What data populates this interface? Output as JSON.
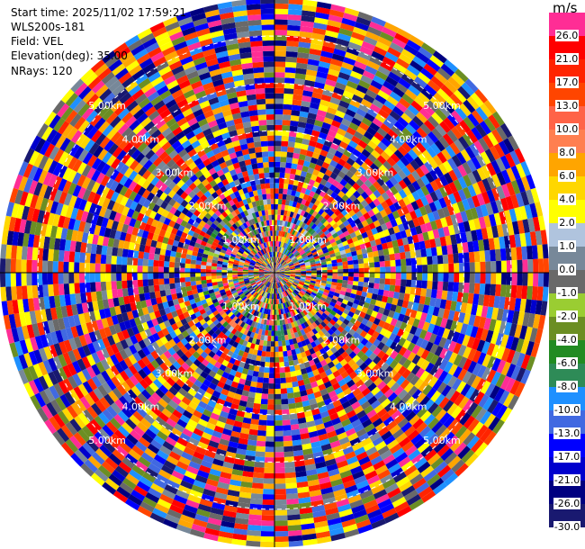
{
  "info": {
    "start_time": "Start time: 2025/11/02 17:59:21",
    "station": "WLS200s-181",
    "field": "Field: VEL",
    "elevation": "Elevation(deg): 35.00",
    "nrays": "NRays: 120"
  },
  "colorbar": {
    "unit": "m/s",
    "bins": [
      {
        "label": "26.0",
        "color": "#ff2d95"
      },
      {
        "label": "21.0",
        "color": "#ff0000"
      },
      {
        "label": "17.0",
        "color": "#ff2400"
      },
      {
        "label": "13.0",
        "color": "#ff4500"
      },
      {
        "label": "10.0",
        "color": "#ff6347"
      },
      {
        "label": "8.0",
        "color": "#ff7f50"
      },
      {
        "label": "6.0",
        "color": "#ffa500"
      },
      {
        "label": "4.0",
        "color": "#ffd700"
      },
      {
        "label": "2.0",
        "color": "#ffff00"
      },
      {
        "label": "1.0",
        "color": "#b0c4de"
      },
      {
        "label": "0.0",
        "color": "#778899"
      },
      {
        "label": "-1.0",
        "color": "#696969"
      },
      {
        "label": "-2.0",
        "color": "#9acd32"
      },
      {
        "label": "-4.0",
        "color": "#6b8e23"
      },
      {
        "label": "-6.0",
        "color": "#228b22"
      },
      {
        "label": "-8.0",
        "color": "#2e8b57"
      },
      {
        "label": "-10.0",
        "color": "#1e90ff"
      },
      {
        "label": "-13.0",
        "color": "#4169e1"
      },
      {
        "label": "-17.0",
        "color": "#0000ff"
      },
      {
        "label": "-21.0",
        "color": "#0000cd"
      },
      {
        "label": "-26.0",
        "color": "#000080"
      },
      {
        "label": "-30.0",
        "color": "#191970"
      }
    ]
  },
  "chart_data": {
    "type": "heatmap",
    "projection": "polar-ppi",
    "field": "VEL",
    "nrays": 120,
    "range_rings_km": [
      1.0,
      2.0,
      3.0,
      4.0,
      5.0
    ],
    "ring_labels": [
      "1.00km",
      "2.00km",
      "3.00km",
      "4.00km",
      "5.00km"
    ],
    "max_range_km": 5.8,
    "colorbar_unit": "m/s",
    "colorbar_ticks": [
      26.0,
      21.0,
      17.0,
      13.0,
      10.0,
      8.0,
      6.0,
      4.0,
      2.0,
      1.0,
      0.0,
      -1.0,
      -2.0,
      -4.0,
      -6.0,
      -8.0,
      -10.0,
      -13.0,
      -17.0,
      -21.0,
      -26.0,
      -30.0
    ]
  }
}
